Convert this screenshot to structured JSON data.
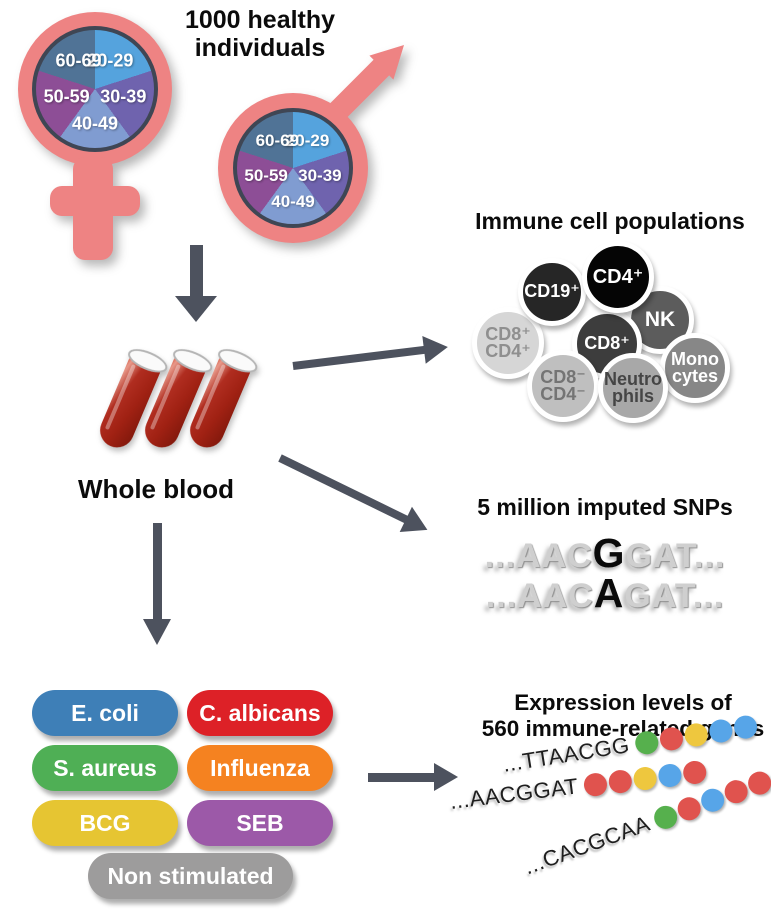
{
  "titles": {
    "cohort": "1000 healthy individuals",
    "immune": "Immune cell populations",
    "whole_blood": "Whole blood",
    "snp": "5 million imputed SNPs",
    "expression_line1": "Expression levels of",
    "expression_line2": "560 immune-related genes"
  },
  "palette": {
    "symbol_pink": "#ee8383",
    "arrow_gray": "#4d525e",
    "pie_border": "#3f4654",
    "blood_red": "#b02d20"
  },
  "age_pie": {
    "segments": [
      {
        "label": "20-29",
        "color": "#55a3dd"
      },
      {
        "label": "30-39",
        "color": "#6f63ae"
      },
      {
        "label": "40-49",
        "color": "#809cd1"
      },
      {
        "label": "50-59",
        "color": "#8d4e96"
      },
      {
        "label": "60-69",
        "color": "#507396"
      }
    ]
  },
  "immune": {
    "cells": [
      {
        "id": "nk",
        "label": "NK",
        "bg": "#5c5c5c",
        "fg": "#ffffff"
      },
      {
        "id": "cd8p-cd4p",
        "label": "CD8⁺\nCD4⁺",
        "bg": "#d6d6d6",
        "fg": "#8f8f8f"
      },
      {
        "id": "cd19",
        "label": "CD19⁺",
        "bg": "#262626",
        "fg": "#ffffff"
      },
      {
        "id": "cd8",
        "label": "CD8⁺",
        "bg": "#3d3d3d",
        "fg": "#ffffff"
      },
      {
        "id": "monocytes",
        "label": "Mono\ncytes",
        "bg": "#878787",
        "fg": "#ffffff"
      },
      {
        "id": "cd8n-cd4n",
        "label": "CD8⁻\nCD4⁻",
        "bg": "#bfbfbf",
        "fg": "#747474"
      },
      {
        "id": "neutrophils",
        "label": "Neutro\nphils",
        "bg": "#a8a8a8",
        "fg": "#454545"
      },
      {
        "id": "cd4",
        "label": "CD4⁺",
        "bg": "#050505",
        "fg": "#ffffff"
      }
    ]
  },
  "snp": {
    "lines": [
      {
        "pre": "...AAC",
        "snp": "G",
        "post": "GAT..."
      },
      {
        "pre": "...AAC",
        "snp": "A",
        "post": "GAT..."
      }
    ]
  },
  "stimuli": {
    "buttons": [
      {
        "id": "e-coli",
        "label": "E. coli",
        "color": "#3e7fb7"
      },
      {
        "id": "c-albicans",
        "label": "C. albicans",
        "color": "#dd2127"
      },
      {
        "id": "s-aureus",
        "label": "S. aureus",
        "color": "#4faf55"
      },
      {
        "id": "influenza",
        "label": "Influenza",
        "color": "#f58220"
      },
      {
        "id": "bcg",
        "label": "BCG",
        "color": "#e6c532"
      },
      {
        "id": "seb",
        "label": "SEB",
        "color": "#9c59a8"
      },
      {
        "id": "non-stimulated",
        "label": "Non stimulated",
        "color": "#9d9c9c"
      }
    ]
  },
  "expression": {
    "dot_colors": {
      "green": "#56b04d",
      "red": "#e0534e",
      "yellow": "#eec73e",
      "blue": "#57a5e8"
    },
    "rows": [
      {
        "seq": "...TTAACGG",
        "dots": [
          "green",
          "red",
          "yellow",
          "blue",
          "blue"
        ]
      },
      {
        "seq": "...AACGGAT",
        "dots": [
          "red",
          "red",
          "yellow",
          "blue",
          "red"
        ]
      },
      {
        "seq": "...CACGCAA",
        "dots": [
          "green",
          "red",
          "blue",
          "red",
          "red"
        ]
      }
    ]
  }
}
